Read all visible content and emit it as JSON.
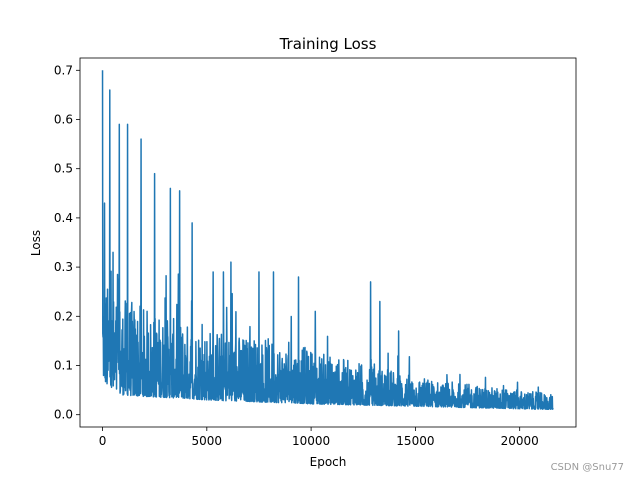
{
  "watermark": "CSDN @Snu77",
  "colors": {
    "series": "#1f77b4",
    "axes": "#000000",
    "background": "#ffffff"
  },
  "chart_data": {
    "type": "line",
    "title": "Training Loss",
    "xlabel": "Epoch",
    "ylabel": "Loss",
    "xlim": [
      -1080,
      22700
    ],
    "ylim": [
      -0.025,
      0.725
    ],
    "xticks": [
      0,
      5000,
      10000,
      15000,
      20000
    ],
    "yticks": [
      0.0,
      0.1,
      0.2,
      0.3,
      0.4,
      0.5,
      0.6,
      0.7
    ],
    "xtick_labels": [
      "0",
      "5000",
      "10000",
      "15000",
      "20000"
    ],
    "ytick_labels": [
      "0.0",
      "0.1",
      "0.2",
      "0.3",
      "0.4",
      "0.5",
      "0.6",
      "0.7"
    ],
    "grid": false,
    "legend": "none",
    "series": [
      {
        "x_range": [
          0,
          21600
        ],
        "envelope_x": [
          0,
          200,
          500,
          1000,
          2000,
          3000,
          4000,
          5000,
          6000,
          7000,
          8000,
          9000,
          10000,
          11000,
          12000,
          13000,
          14000,
          15000,
          16000,
          17000,
          18000,
          19000,
          20000,
          21000,
          21600
        ],
        "envelope_low": [
          0.08,
          0.06,
          0.045,
          0.04,
          0.037,
          0.035,
          0.033,
          0.03,
          0.028,
          0.027,
          0.025,
          0.024,
          0.022,
          0.021,
          0.02,
          0.019,
          0.018,
          0.017,
          0.016,
          0.015,
          0.014,
          0.013,
          0.012,
          0.011,
          0.011
        ],
        "envelope_high": [
          0.3,
          0.27,
          0.25,
          0.24,
          0.22,
          0.2,
          0.19,
          0.18,
          0.17,
          0.16,
          0.155,
          0.145,
          0.135,
          0.12,
          0.11,
          0.1,
          0.09,
          0.08,
          0.07,
          0.065,
          0.06,
          0.055,
          0.05,
          0.045,
          0.04
        ],
        "spikes_x": [
          0,
          100,
          350,
          500,
          800,
          1200,
          1850,
          2500,
          3250,
          3700,
          4300,
          5300,
          5800,
          6150,
          7500,
          8200,
          9400,
          10200,
          12850,
          13300,
          14200
        ],
        "spikes_y": [
          0.7,
          0.43,
          0.66,
          0.33,
          0.59,
          0.59,
          0.56,
          0.49,
          0.46,
          0.455,
          0.39,
          0.29,
          0.29,
          0.31,
          0.29,
          0.29,
          0.28,
          0.21,
          0.27,
          0.23,
          0.17
        ]
      }
    ]
  }
}
